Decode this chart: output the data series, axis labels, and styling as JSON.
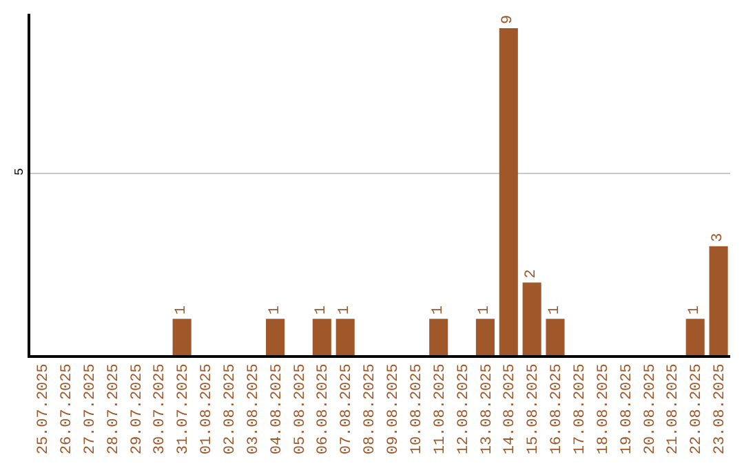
{
  "chart_data": {
    "type": "bar",
    "categories": [
      "25.07.2025",
      "26.07.2025",
      "27.07.2025",
      "28.07.2025",
      "29.07.2025",
      "30.07.2025",
      "31.07.2025",
      "01.08.2025",
      "02.08.2025",
      "03.08.2025",
      "04.08.2025",
      "05.08.2025",
      "06.08.2025",
      "07.08.2025",
      "08.08.2025",
      "09.08.2025",
      "10.08.2025",
      "11.08.2025",
      "12.08.2025",
      "13.08.2025",
      "14.08.2025",
      "15.08.2025",
      "16.08.2025",
      "17.08.2025",
      "18.08.2025",
      "19.08.2025",
      "20.08.2025",
      "21.08.2025",
      "22.08.2025",
      "23.08.2025"
    ],
    "values": [
      0,
      0,
      0,
      0,
      0,
      0,
      1,
      0,
      0,
      0,
      1,
      0,
      1,
      1,
      0,
      0,
      0,
      1,
      0,
      1,
      9,
      2,
      1,
      0,
      0,
      0,
      0,
      0,
      1,
      3
    ],
    "value_labels": [
      null,
      null,
      null,
      null,
      null,
      null,
      "1",
      null,
      null,
      null,
      "1",
      null,
      "1",
      "1",
      null,
      null,
      null,
      "1",
      null,
      "1",
      "9",
      "2",
      "1",
      null,
      null,
      null,
      null,
      null,
      "1",
      "3"
    ],
    "color": "#a0582a",
    "ylim": [
      0,
      9.4
    ],
    "yticks": [
      5
    ],
    "grid": "y",
    "legend": false
  }
}
